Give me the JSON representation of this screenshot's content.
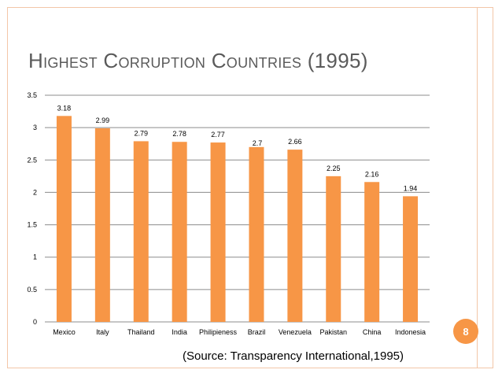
{
  "slide": {
    "title": "Highest Corruption Countries (1995)",
    "source": "(Source: Transparency International,1995)",
    "page_number": "8",
    "accent_color": "#f79646",
    "frame_color": "#f3c6a8"
  },
  "chart_data": {
    "type": "bar",
    "title": "",
    "xlabel": "",
    "ylabel": "",
    "categories": [
      "Mexico",
      "Italy",
      "Thailand",
      "India",
      "Philipieness",
      "Brazil",
      "Venezuela",
      "Pakistan",
      "China",
      "Indonesia"
    ],
    "values": [
      3.18,
      2.99,
      2.79,
      2.78,
      2.77,
      2.7,
      2.66,
      2.25,
      2.16,
      1.94
    ],
    "data_labels": [
      "3.18",
      "2.99",
      "2.79",
      "2.78",
      "2.77",
      "2.7",
      "2.66",
      "2.25",
      "2.16",
      "1.94"
    ],
    "ylim": [
      0,
      3.5
    ],
    "yticks": [
      "0",
      "0.5",
      "1",
      "1.5",
      "2",
      "2.5",
      "3",
      "3.5"
    ],
    "grid": true,
    "legend": "none",
    "bar_color": "#f79646"
  }
}
